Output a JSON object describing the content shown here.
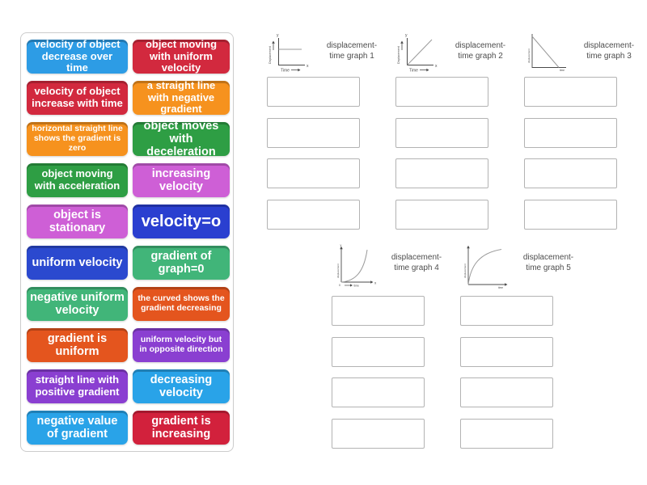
{
  "activity": {
    "tile_panel": {
      "tiles": [
        {
          "label": "velocity of object decrease over time",
          "color": "#2D9CE5",
          "size": "m"
        },
        {
          "label": "object moving with uniform velocity",
          "color": "#D2293E",
          "size": "m"
        },
        {
          "label": "velocity of object increase with time",
          "color": "#D2293E",
          "size": "m"
        },
        {
          "label": "a straight line with negative gradient",
          "color": "#F6921E",
          "size": "m"
        },
        {
          "label": "horizontal straight line shows the gradient is zero",
          "color": "#F6921E",
          "size": "s"
        },
        {
          "label": "object moves with deceleration",
          "color": "#2E9E44",
          "size": "l"
        },
        {
          "label": "object moving with acceleration",
          "color": "#2E9E44",
          "size": "m"
        },
        {
          "label": "increasing velocity",
          "color": "#CE5FD6",
          "size": "l"
        },
        {
          "label": "object is stationary",
          "color": "#CE5FD6",
          "size": "l"
        },
        {
          "label": "velocity=o",
          "color": "#2A3FD0",
          "size": "xl"
        },
        {
          "label": "uniform velocity",
          "color": "#2B49CF",
          "size": "l"
        },
        {
          "label": "gradient of graph=0",
          "color": "#41B579",
          "size": "l"
        },
        {
          "label": "negative uniform velocity",
          "color": "#41B579",
          "size": "l"
        },
        {
          "label": "the curved shows the gradient decreasing",
          "color": "#E4551E",
          "size": "s"
        },
        {
          "label": "gradient is uniform",
          "color": "#E4551E",
          "size": "l"
        },
        {
          "label": "uniform velocity but in opposite direction",
          "color": "#8A3FD1",
          "size": "s"
        },
        {
          "label": "straight line with positive gradient",
          "color": "#8A3FD1",
          "size": "m"
        },
        {
          "label": "decreasing velocity",
          "color": "#29A3E8",
          "size": "l"
        },
        {
          "label": "negative value of gradient",
          "color": "#29A3E8",
          "size": "l"
        },
        {
          "label": "gradient is increasing",
          "color": "#D2213C",
          "size": "l"
        }
      ]
    },
    "groups": [
      {
        "id": "g1",
        "graph_type": "horizontal-line",
        "label_line1": "displacement-",
        "label_line2": "time graph 1",
        "slot_count": 4
      },
      {
        "id": "g2",
        "graph_type": "positive-slope-line",
        "label_line1": "displacement-",
        "label_line2": "time graph 2",
        "slot_count": 4
      },
      {
        "id": "g3",
        "graph_type": "negative-slope-line",
        "label_line1": "displacement-",
        "label_line2": "time graph 3",
        "slot_count": 4
      },
      {
        "id": "g4",
        "graph_type": "concave-up-curve",
        "label_line1": "displacement-",
        "label_line2": "time graph 4",
        "slot_count": 4
      },
      {
        "id": "g5",
        "graph_type": "concave-down-curve",
        "label_line1": "displacement-",
        "label_line2": "time graph 5",
        "slot_count": 4
      }
    ],
    "axis_labels": {
      "y_axis": "Displacement",
      "x_axis": "Time",
      "y_letter": "y",
      "x_letter": "x",
      "displacement_lower": "displacement",
      "time_lower": "time",
      "origin": "0"
    },
    "colors": {
      "background": "#ffffff",
      "panel_border": "#cccccc",
      "slot_border": "#b3b3b3",
      "group_label_text": "#4d4d4d",
      "graph_axis": "#4a4a4a",
      "graph_line": "#9a9a9a"
    }
  }
}
